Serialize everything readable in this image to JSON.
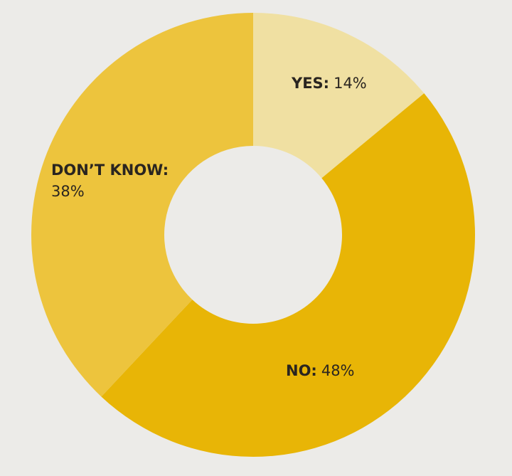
{
  "chart_data": {
    "type": "donut",
    "categories": [
      "YES:",
      "NO:",
      "DON’T KNOW:"
    ],
    "values": [
      14,
      48,
      38
    ],
    "value_labels": [
      "14%",
      "48%",
      "38%"
    ],
    "colors": [
      "#f0e0a2",
      "#e8b506",
      "#edc43d"
    ]
  }
}
